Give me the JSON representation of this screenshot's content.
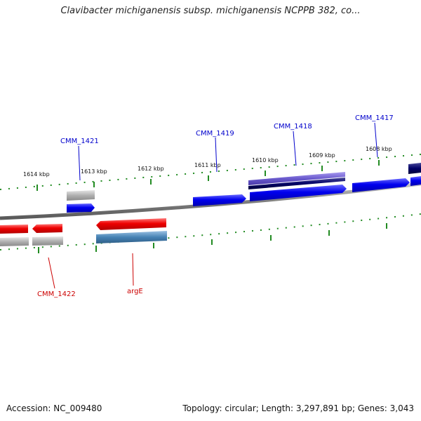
{
  "title": "Clavibacter michiganensis subsp. michiganensis NCPPB 382, co...",
  "footer": {
    "accession": "Accession: NC_009480",
    "summary": "Topology: circular; Length: 3,297,891 bp; Genes: 3,043"
  },
  "colors": {
    "plus_gene": "#0000ee",
    "plus_gene_dark": "#000066",
    "plus_feature": "#6a5acd",
    "minus_gene": "#ee0000",
    "minus_feature": "#4682b4",
    "pseudo": "#b0b0b0",
    "tick": "#228b22",
    "backbone": "#808080",
    "plus_label": "#0000cc",
    "minus_label": "#cc0000"
  },
  "ticks": [
    "1614 kbp",
    "1613 kbp",
    "1612 kbp",
    "1611 kbp",
    "1610 kbp",
    "1609 kbp",
    "1608 kbp"
  ],
  "gene_labels": {
    "plus": [
      "CMM_1421",
      "CMM_1419",
      "CMM_1418",
      "CMM_1417"
    ],
    "minus": [
      "CMM_1422",
      "argE"
    ]
  }
}
